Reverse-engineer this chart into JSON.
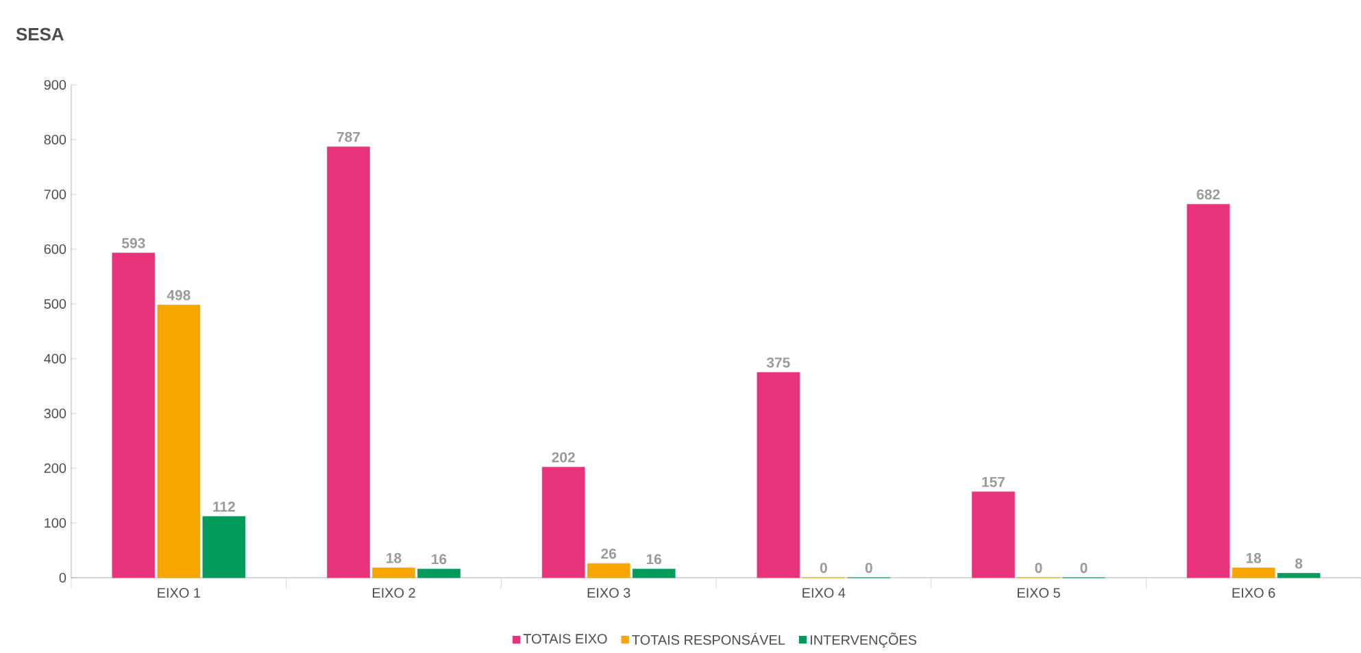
{
  "chart_data": {
    "type": "bar",
    "title": "SESA",
    "categories": [
      "EIXO 1",
      "EIXO 2",
      "EIXO 3",
      "EIXO 4",
      "EIXO 5",
      "EIXO 6"
    ],
    "series": [
      {
        "name": "TOTAIS EIXO",
        "color": "#e8327c",
        "values": [
          593,
          787,
          202,
          375,
          157,
          682
        ]
      },
      {
        "name": "TOTAIS RESPONSÁVEL",
        "color": "#f7a600",
        "values": [
          498,
          18,
          26,
          0,
          0,
          18
        ]
      },
      {
        "name": "INTERVENÇÕES",
        "color": "#009a5b",
        "values": [
          112,
          16,
          16,
          0,
          0,
          8
        ]
      }
    ],
    "ylim": [
      0,
      900
    ],
    "yticks": [
      0,
      100,
      200,
      300,
      400,
      500,
      600,
      700,
      800,
      900
    ],
    "data_labels": true,
    "grid": false,
    "legend": "bottom"
  }
}
